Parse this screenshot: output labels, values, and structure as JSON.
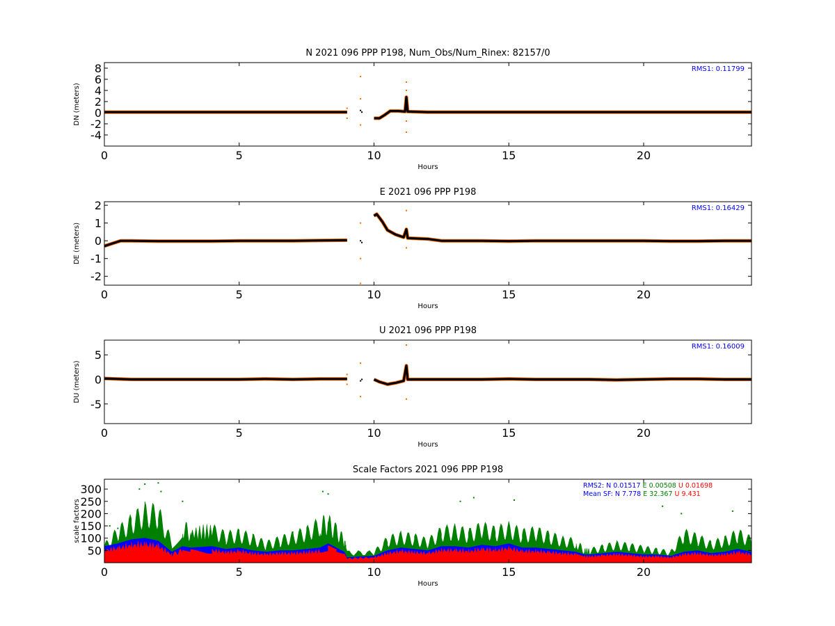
{
  "figure": {
    "background": "#ffffff"
  },
  "chart_data": [
    {
      "type": "scatter",
      "title": "N 2021 096 PPP  P198, Num_Obs/Num_Rinex: 82157/0",
      "xlabel": "Hours",
      "ylabel": "DN (meters)",
      "xlim": [
        0,
        24
      ],
      "ylim": [
        -6,
        9
      ],
      "xticks": [
        0,
        5,
        10,
        15,
        20
      ],
      "yticks": [
        8,
        6,
        4,
        2,
        0,
        -2,
        -4
      ],
      "grid": false,
      "annotation": "RMS1:  0.11799",
      "annotation_color": "#0000ff",
      "series": [
        {
          "role": "observed",
          "color": "#ff6600",
          "points": [
            [
              9.0,
              0.8
            ],
            [
              9.0,
              -1.0
            ],
            [
              9.5,
              6.5
            ],
            [
              9.5,
              2.5
            ],
            [
              9.5,
              -2.2
            ],
            [
              11.2,
              5.5
            ],
            [
              11.2,
              4.0
            ],
            [
              11.2,
              -1.5
            ],
            [
              11.2,
              -3.5
            ]
          ]
        },
        {
          "role": "filtered",
          "color": "#000000",
          "line": [
            [
              0,
              0.1
            ],
            [
              1,
              0.1
            ],
            [
              2,
              0.1
            ],
            [
              3,
              0.1
            ],
            [
              4,
              0.1
            ],
            [
              5,
              0.1
            ],
            [
              6,
              0.1
            ],
            [
              7,
              0.1
            ],
            [
              8,
              0.1
            ],
            [
              9.0,
              0.1
            ],
            [
              null,
              null
            ],
            [
              10.0,
              -1.0
            ],
            [
              10.2,
              -1.0
            ],
            [
              10.4,
              -0.4
            ],
            [
              10.6,
              0.3
            ],
            [
              10.9,
              0.3
            ],
            [
              11.15,
              0.2
            ],
            [
              11.2,
              2.8
            ],
            [
              11.25,
              0.2
            ],
            [
              12,
              0.1
            ],
            [
              13,
              0.1
            ],
            [
              14,
              0.1
            ],
            [
              15,
              0.1
            ],
            [
              16,
              0.1
            ],
            [
              17,
              0.1
            ],
            [
              17.8,
              0.1
            ],
            [
              17.9,
              0.1
            ],
            [
              19,
              0.1
            ],
            [
              20,
              0.1
            ],
            [
              21,
              0.1
            ],
            [
              22,
              0.1
            ],
            [
              23,
              0.1
            ],
            [
              24,
              0.1
            ]
          ],
          "points": [
            [
              9.5,
              0.4
            ],
            [
              9.55,
              0.1
            ]
          ]
        }
      ]
    },
    {
      "type": "scatter",
      "title": "E 2021 096 PPP  P198",
      "xlabel": "Hours",
      "ylabel": "DE (meters)",
      "xlim": [
        0,
        24
      ],
      "ylim": [
        -2.5,
        2.2
      ],
      "xticks": [
        0,
        5,
        10,
        15,
        20
      ],
      "yticks": [
        2,
        1,
        0,
        -1,
        -2
      ],
      "grid": false,
      "annotation": "RMS1:  0.16429",
      "annotation_color": "#0000ff",
      "series": [
        {
          "role": "observed",
          "color": "#ff6600",
          "points": [
            [
              9.5,
              1.0
            ],
            [
              9.5,
              -1.0
            ],
            [
              9.5,
              -2.4
            ],
            [
              11.2,
              1.7
            ],
            [
              11.2,
              -0.4
            ]
          ]
        },
        {
          "role": "filtered",
          "color": "#000000",
          "line": [
            [
              0,
              -0.3
            ],
            [
              0.3,
              -0.15
            ],
            [
              0.6,
              0.0
            ],
            [
              1.0,
              0.0
            ],
            [
              2,
              -0.02
            ],
            [
              3,
              -0.02
            ],
            [
              4,
              -0.02
            ],
            [
              5,
              0.0
            ],
            [
              6,
              0.0
            ],
            [
              7,
              0.0
            ],
            [
              8,
              0.02
            ],
            [
              9.0,
              0.03
            ],
            [
              null,
              null
            ],
            [
              10.0,
              1.4
            ],
            [
              10.1,
              1.5
            ],
            [
              10.3,
              1.1
            ],
            [
              10.5,
              0.6
            ],
            [
              10.8,
              0.35
            ],
            [
              11.1,
              0.2
            ],
            [
              11.2,
              0.65
            ],
            [
              11.25,
              0.15
            ],
            [
              12,
              0.1
            ],
            [
              12.5,
              0.0
            ],
            [
              13,
              0.0
            ],
            [
              14,
              0.0
            ],
            [
              15,
              -0.02
            ],
            [
              16,
              0.0
            ],
            [
              17,
              0.0
            ],
            [
              17.8,
              0.0
            ],
            [
              18,
              0.0
            ],
            [
              19,
              0.0
            ],
            [
              20,
              0.0
            ],
            [
              21,
              -0.02
            ],
            [
              22,
              -0.02
            ],
            [
              23,
              0.0
            ],
            [
              24,
              0.0
            ]
          ],
          "points": [
            [
              9.5,
              0.0
            ],
            [
              9.55,
              -0.1
            ]
          ]
        }
      ]
    },
    {
      "type": "scatter",
      "title": "U 2021 096 PPP  P198",
      "xlabel": "Hours",
      "ylabel": "DU (meters)",
      "xlim": [
        0,
        24
      ],
      "ylim": [
        -9,
        8
      ],
      "xticks": [
        0,
        5,
        10,
        15,
        20
      ],
      "yticks": [
        5,
        0,
        -5
      ],
      "grid": false,
      "annotation": "RMS1:  0.16009",
      "annotation_color": "#0000ff",
      "series": [
        {
          "role": "observed",
          "color": "#ff6600",
          "points": [
            [
              9.0,
              1.0
            ],
            [
              9.0,
              -1.0
            ],
            [
              9.5,
              3.3
            ],
            [
              9.5,
              -3.5
            ],
            [
              11.2,
              7.0
            ],
            [
              11.2,
              -4.0
            ]
          ]
        },
        {
          "role": "filtered",
          "color": "#000000",
          "line": [
            [
              0,
              0.2
            ],
            [
              1,
              0.0
            ],
            [
              2,
              0.0
            ],
            [
              3,
              0.0
            ],
            [
              4,
              0.0
            ],
            [
              5,
              0.0
            ],
            [
              6,
              0.1
            ],
            [
              7,
              0.0
            ],
            [
              8,
              0.1
            ],
            [
              9.0,
              0.1
            ],
            [
              null,
              null
            ],
            [
              10.0,
              0.0
            ],
            [
              10.2,
              -0.5
            ],
            [
              10.5,
              -1.0
            ],
            [
              10.8,
              -0.7
            ],
            [
              11.1,
              -0.3
            ],
            [
              11.2,
              2.8
            ],
            [
              11.25,
              0.0
            ],
            [
              12,
              0.0
            ],
            [
              13,
              0.0
            ],
            [
              14,
              0.0
            ],
            [
              15,
              0.1
            ],
            [
              16,
              0.0
            ],
            [
              17,
              0.0
            ],
            [
              18,
              0.0
            ],
            [
              19,
              -0.1
            ],
            [
              20,
              0.0
            ],
            [
              21,
              0.1
            ],
            [
              22,
              0.1
            ],
            [
              23,
              0.0
            ],
            [
              24,
              0.0
            ]
          ],
          "points": [
            [
              9.5,
              -0.3
            ],
            [
              9.55,
              0.0
            ]
          ]
        }
      ]
    },
    {
      "type": "area",
      "title": "Scale Factors 2021 096 PPP  P198",
      "xlabel": "Hours",
      "ylabel": "scale factors",
      "xlim": [
        0,
        24
      ],
      "ylim": [
        0,
        340
      ],
      "xticks": [
        0,
        5,
        10,
        15,
        20
      ],
      "yticks": [
        300,
        250,
        200,
        150,
        100,
        50
      ],
      "grid": false,
      "rms2": {
        "label": "RMS2: N",
        "n": "0.01517",
        "e_label": "E",
        "e": "0.00508",
        "u_label": "U",
        "u": "0.01698"
      },
      "mean_sf": {
        "label": "Mean SF: N",
        "n": "7.778",
        "e_label": "E",
        "e": "32.367",
        "u_label": "U",
        "u": "9.431"
      },
      "series": [
        {
          "component": "E",
          "color": "#008000",
          "x": [
            0,
            0.5,
            1,
            1.5,
            2,
            2.5,
            2.9,
            3.2,
            4,
            4.5,
            5,
            5.5,
            6,
            6.5,
            7,
            7.5,
            8,
            8.3,
            8.6,
            8.9,
            9.0,
            10.0,
            10.5,
            11,
            11.5,
            12,
            12.5,
            13,
            13.5,
            14,
            14.5,
            15,
            15.5,
            16,
            16.5,
            17,
            17.5,
            17.8,
            18,
            18.5,
            19,
            19.5,
            20,
            20.5,
            21,
            21.5,
            22,
            22.5,
            23,
            23.5,
            24
          ],
          "max": [
            80,
            150,
            200,
            250,
            240,
            100,
            180,
            150,
            160,
            130,
            140,
            120,
            90,
            110,
            130,
            150,
            190,
            200,
            160,
            110,
            50,
            50,
            110,
            130,
            120,
            100,
            150,
            160,
            140,
            170,
            150,
            170,
            140,
            150,
            130,
            110,
            100,
            60,
            60,
            75,
            90,
            80,
            70,
            60,
            50,
            140,
            120,
            90,
            110,
            140,
            110
          ]
        }
      ],
      "bands": [
        {
          "component": "U",
          "color": "#ff0000",
          "x": [
            0,
            0.5,
            1,
            1.5,
            2,
            2.5,
            2.9,
            3.2,
            4,
            4.5,
            5,
            5.5,
            6,
            6.5,
            7,
            7.5,
            8,
            8.3,
            8.6,
            8.9,
            9.0,
            10.0,
            10.5,
            11,
            11.5,
            12,
            12.5,
            13,
            13.5,
            14,
            14.5,
            15,
            15.5,
            16,
            16.5,
            17,
            17.5,
            17.8,
            18,
            18.5,
            19,
            19.5,
            20,
            20.5,
            21,
            21.5,
            22,
            22.5,
            23,
            23.5,
            24
          ],
          "max": [
            60,
            70,
            85,
            90,
            80,
            40,
            60,
            55,
            60,
            50,
            55,
            45,
            40,
            45,
            45,
            50,
            55,
            70,
            55,
            40,
            20,
            25,
            45,
            55,
            50,
            45,
            60,
            60,
            55,
            65,
            60,
            70,
            55,
            55,
            50,
            45,
            40,
            30,
            30,
            35,
            40,
            35,
            30,
            30,
            25,
            40,
            45,
            35,
            40,
            50,
            40
          ]
        }
      ],
      "outlier_points": [
        [
          1.5,
          320
        ],
        [
          2.0,
          325
        ],
        [
          1.3,
          300
        ],
        [
          2.1,
          290
        ],
        [
          2.9,
          250
        ],
        [
          8.1,
          290
        ],
        [
          8.3,
          280
        ],
        [
          13.2,
          250
        ],
        [
          13.7,
          265
        ],
        [
          15.2,
          255
        ],
        [
          20.7,
          230
        ],
        [
          21.4,
          200
        ],
        [
          23.3,
          210
        ],
        [
          0.2,
          150
        ],
        [
          0.5,
          140
        ]
      ]
    }
  ]
}
